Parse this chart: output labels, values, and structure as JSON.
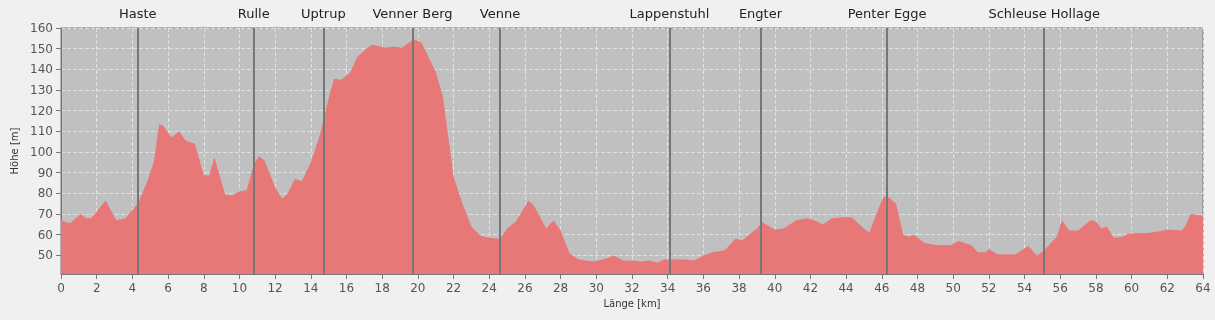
{
  "chart_data": {
    "type": "area",
    "xlabel": "Länge [km]",
    "ylabel": "Höhe [m]",
    "x": [
      0,
      0.5,
      1.1,
      1.4,
      1.7,
      2.5,
      3.1,
      3.6,
      4.3,
      4.8,
      5.2,
      5.5,
      5.7,
      6.2,
      6.6,
      7.0,
      7.5,
      8.0,
      8.3,
      8.6,
      9.2,
      9.6,
      10.0,
      10.4,
      10.8,
      11.1,
      11.4,
      12.0,
      12.4,
      12.7,
      13.1,
      13.5,
      14.0,
      14.5,
      15.0,
      15.3,
      15.7,
      16.2,
      16.6,
      17.0,
      17.4,
      17.9,
      18.2,
      18.6,
      19.1,
      19.5,
      19.8,
      20.2,
      20.7,
      21.0,
      21.4,
      22.0,
      22.5,
      23.0,
      23.5,
      24.0,
      24.6,
      25.0,
      25.5,
      26.2,
      26.5,
      27.2,
      27.6,
      28.0,
      28.5,
      29.0,
      29.8,
      30.4,
      31.0,
      31.5,
      32.0,
      32.5,
      33.0,
      33.4,
      33.8,
      34.5,
      35.0,
      35.5,
      36.0,
      36.5,
      37.2,
      37.8,
      38.2,
      39.0,
      39.3,
      40.0,
      40.5,
      41.2,
      41.8,
      42.2,
      42.7,
      43.2,
      43.8,
      44.3,
      45.0,
      45.3,
      45.7,
      46.1,
      46.4,
      46.8,
      47.2,
      47.5,
      47.8,
      48.4,
      49.0,
      49.9,
      50.3,
      51.0,
      51.4,
      51.8,
      52.0,
      52.5,
      53.5,
      54.2,
      54.7,
      55.1,
      55.8,
      56.1,
      56.5,
      57.0,
      57.7,
      58.0,
      58.3,
      58.6,
      59.0,
      59.5,
      59.8,
      61.0,
      61.5,
      62.0,
      62.8,
      63.0,
      63.3,
      63.7,
      64.0
    ],
    "series": [
      {
        "color": "#e87878",
        "values": [
          67,
          65.5,
          70,
          68,
          68,
          76.5,
          67,
          68,
          75,
          85,
          95,
          113.5,
          113,
          107,
          110,
          105.5,
          104,
          89,
          88.5,
          97.5,
          79.5,
          79,
          81,
          81.5,
          94,
          98,
          96,
          83,
          77.5,
          80,
          87,
          86,
          95,
          108,
          126,
          135.5,
          135,
          138.5,
          146,
          149,
          152,
          151,
          150.5,
          151,
          150.5,
          153,
          154.5,
          153,
          144,
          139,
          127,
          88,
          75,
          64,
          59.5,
          58.5,
          58,
          63,
          66.5,
          76.5,
          74,
          63,
          67,
          62,
          51,
          48,
          47,
          48,
          50,
          47.5,
          47.5,
          47,
          47.5,
          46.5,
          48,
          48,
          48,
          47.5,
          50,
          51.5,
          52.5,
          58,
          57.5,
          63,
          66,
          62.5,
          63,
          67,
          68,
          67,
          65,
          68,
          68.5,
          68.5,
          63,
          61,
          70,
          78.5,
          78,
          75,
          60,
          59,
          60,
          56,
          55,
          55,
          57,
          55,
          51.5,
          51.5,
          53,
          50.5,
          50.5,
          54.5,
          50,
          52.5,
          59,
          67,
          62,
          62,
          67,
          66.5,
          63,
          64,
          58.5,
          59,
          60.5,
          61,
          61.5,
          62.5,
          62,
          64,
          70,
          69.5,
          69
        ]
      }
    ],
    "xlim": [
      0,
      64
    ],
    "xticks": [
      0,
      2,
      4,
      6,
      8,
      10,
      12,
      14,
      16,
      18,
      20,
      22,
      24,
      26,
      28,
      30,
      32,
      34,
      36,
      38,
      40,
      42,
      44,
      46,
      48,
      50,
      52,
      54,
      56,
      58,
      60,
      62,
      64
    ],
    "ylim": [
      41,
      160
    ],
    "yticks": [
      50,
      60,
      70,
      80,
      90,
      100,
      110,
      120,
      130,
      140,
      150,
      160
    ],
    "grid": true,
    "ref_lines": [
      {
        "axis": "x",
        "value": 4.3,
        "label": "Haste",
        "color": "#777777"
      },
      {
        "axis": "x",
        "value": 10.8,
        "label": "Rulle",
        "color": "#777777"
      },
      {
        "axis": "x",
        "value": 14.7,
        "label": "Uptrup",
        "color": "#777777"
      },
      {
        "axis": "x",
        "value": 19.7,
        "label": "Venner Berg",
        "color": "#777777"
      },
      {
        "axis": "x",
        "value": 24.6,
        "label": "Venne",
        "color": "#777777"
      },
      {
        "axis": "x",
        "value": 34.1,
        "label": "Lappenstuhl",
        "color": "#777777"
      },
      {
        "axis": "x",
        "value": 39.2,
        "label": "Engter",
        "color": "#777777"
      },
      {
        "axis": "x",
        "value": 46.3,
        "label": "Penter Egge",
        "color": "#777777"
      },
      {
        "axis": "x",
        "value": 55.1,
        "label": "Schleuse Hollage",
        "color": "#777777"
      }
    ]
  }
}
